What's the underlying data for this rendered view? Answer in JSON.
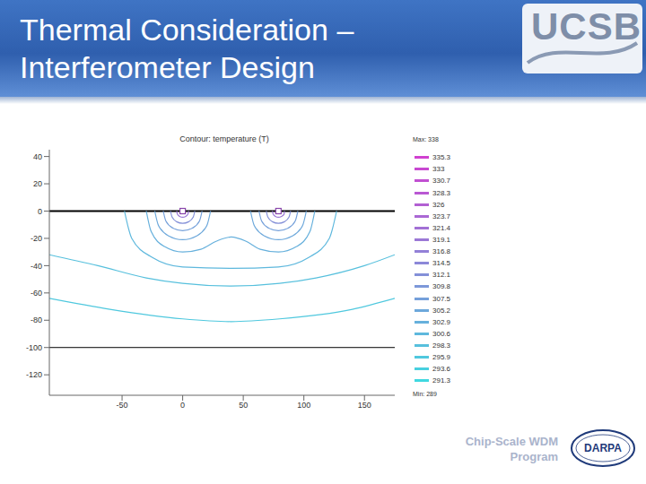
{
  "slide": {
    "title": [
      "Thermal Consideration –",
      "Interferometer Design"
    ],
    "logo": "UCSB",
    "footer": [
      "Chip-Scale WDM",
      "Program"
    ],
    "badge": "DARPA"
  },
  "chart_data": {
    "type": "contour",
    "title": "Contour: temperature (T)",
    "xlim": [
      -110,
      175
    ],
    "ylim": [
      -135,
      45
    ],
    "xticks": [
      -50,
      0,
      50,
      100,
      150
    ],
    "yticks": [
      40,
      20,
      0,
      -20,
      -40,
      -60,
      -80,
      -100,
      -120
    ],
    "levels": [
      {
        "value": 335.3,
        "color": "#d040d0"
      },
      {
        "value": 333,
        "color": "#c848d1"
      },
      {
        "value": 330.7,
        "color": "#c150d2"
      },
      {
        "value": 328.3,
        "color": "#b958d3"
      },
      {
        "value": 326,
        "color": "#b260d3"
      },
      {
        "value": 323.7,
        "color": "#aa68d4"
      },
      {
        "value": 321.4,
        "color": "#a270d5"
      },
      {
        "value": 319.1,
        "color": "#9b78d6"
      },
      {
        "value": 316.8,
        "color": "#9380d7"
      },
      {
        "value": 314.5,
        "color": "#8c88d8"
      },
      {
        "value": 312.1,
        "color": "#8490d8"
      },
      {
        "value": 309.8,
        "color": "#7d98d9"
      },
      {
        "value": 307.5,
        "color": "#75a0da"
      },
      {
        "value": 305.2,
        "color": "#6da8db"
      },
      {
        "value": 302.9,
        "color": "#66b0dc"
      },
      {
        "value": 300.6,
        "color": "#5eb8dd"
      },
      {
        "value": 298.3,
        "color": "#57c0dd"
      },
      {
        "value": 295.9,
        "color": "#4fc8de"
      },
      {
        "value": 293.6,
        "color": "#48d0df"
      },
      {
        "value": 291.3,
        "color": "#40d8e0"
      }
    ],
    "color_range": {
      "min": {
        "value": 289,
        "label": "Min: 289"
      },
      "max": {
        "value": 338,
        "label": "Max: 338"
      }
    },
    "contours": [
      {
        "level": 319.1,
        "x": [
          -5,
          -4.3,
          -2.5,
          0,
          2.5,
          4.3,
          5
        ],
        "values": [
          0,
          -2.25,
          -3.9,
          -4.5,
          -3.9,
          -2.25,
          0
        ]
      },
      {
        "level": 312.1,
        "x": [
          -10,
          -8.7,
          -5,
          0,
          5,
          8.7,
          10
        ],
        "values": [
          0,
          -4.5,
          -7.8,
          -9,
          -7.8,
          -4.5,
          0
        ]
      },
      {
        "level": 307.5,
        "x": [
          -16,
          -13.9,
          -8,
          0,
          8,
          13.9,
          16
        ],
        "values": [
          0,
          -7.2,
          -12.5,
          -14.4,
          -12.5,
          -7.2,
          0
        ]
      },
      {
        "level": 305.2,
        "x": [
          -23,
          -20,
          -11.5,
          0,
          11.5,
          20,
          23
        ],
        "values": [
          0,
          -10.5,
          -18.2,
          -21,
          -18.2,
          -10.5,
          0
        ]
      },
      {
        "level": 319.1,
        "x": [
          74,
          74.7,
          76.5,
          79,
          81.5,
          83.7,
          84
        ],
        "values": [
          0,
          -2.25,
          -3.9,
          -4.5,
          -3.9,
          -2.25,
          0
        ]
      },
      {
        "level": 312.1,
        "x": [
          69,
          70.3,
          74,
          79,
          84,
          87.7,
          89
        ],
        "values": [
          0,
          -4.5,
          -7.8,
          -9,
          -7.8,
          -4.5,
          0
        ]
      },
      {
        "level": 307.5,
        "x": [
          63,
          65.1,
          71,
          79,
          87,
          92.9,
          95
        ],
        "values": [
          0,
          -7.2,
          -12.5,
          -14.4,
          -12.5,
          -7.2,
          0
        ]
      },
      {
        "level": 305.2,
        "x": [
          56,
          59,
          67.5,
          79,
          90.5,
          99,
          102
        ],
        "values": [
          0,
          -10.5,
          -18.2,
          -21,
          -18.2,
          -10.5,
          0
        ]
      },
      {
        "level": 302.9,
        "x": [
          -30,
          -26,
          -15,
          0,
          15,
          28,
          40,
          52,
          64,
          79,
          94,
          105,
          109
        ],
        "values": [
          0,
          -15,
          -26,
          -30,
          -28,
          -22,
          -19,
          -22,
          -28,
          -30,
          -26,
          -15,
          0
        ]
      },
      {
        "level": 300.6,
        "x": [
          -48,
          -42,
          -25,
          0,
          40,
          79,
          104,
          121,
          127
        ],
        "values": [
          0,
          -20,
          -34,
          -41,
          -42,
          -41,
          -34,
          -20,
          0
        ]
      },
      {
        "level": 298.3,
        "x": [
          -110,
          -70,
          -30,
          0,
          40,
          80,
          110,
          150,
          175
        ],
        "values": [
          -32,
          -40,
          -49,
          -53,
          -55,
          -53,
          -49,
          -40,
          -32
        ]
      },
      {
        "level": 295.9,
        "x": [
          -110,
          -60,
          0,
          40,
          80,
          140,
          175
        ],
        "values": [
          -64,
          -72,
          -79,
          -81,
          -79,
          -72,
          -64
        ]
      }
    ],
    "heaters": {
      "x": [
        0,
        79
      ],
      "values": [
        0,
        0
      ],
      "color": "#8844aa",
      "marker": "square"
    },
    "layer_boundaries": [
      0,
      -100
    ]
  }
}
